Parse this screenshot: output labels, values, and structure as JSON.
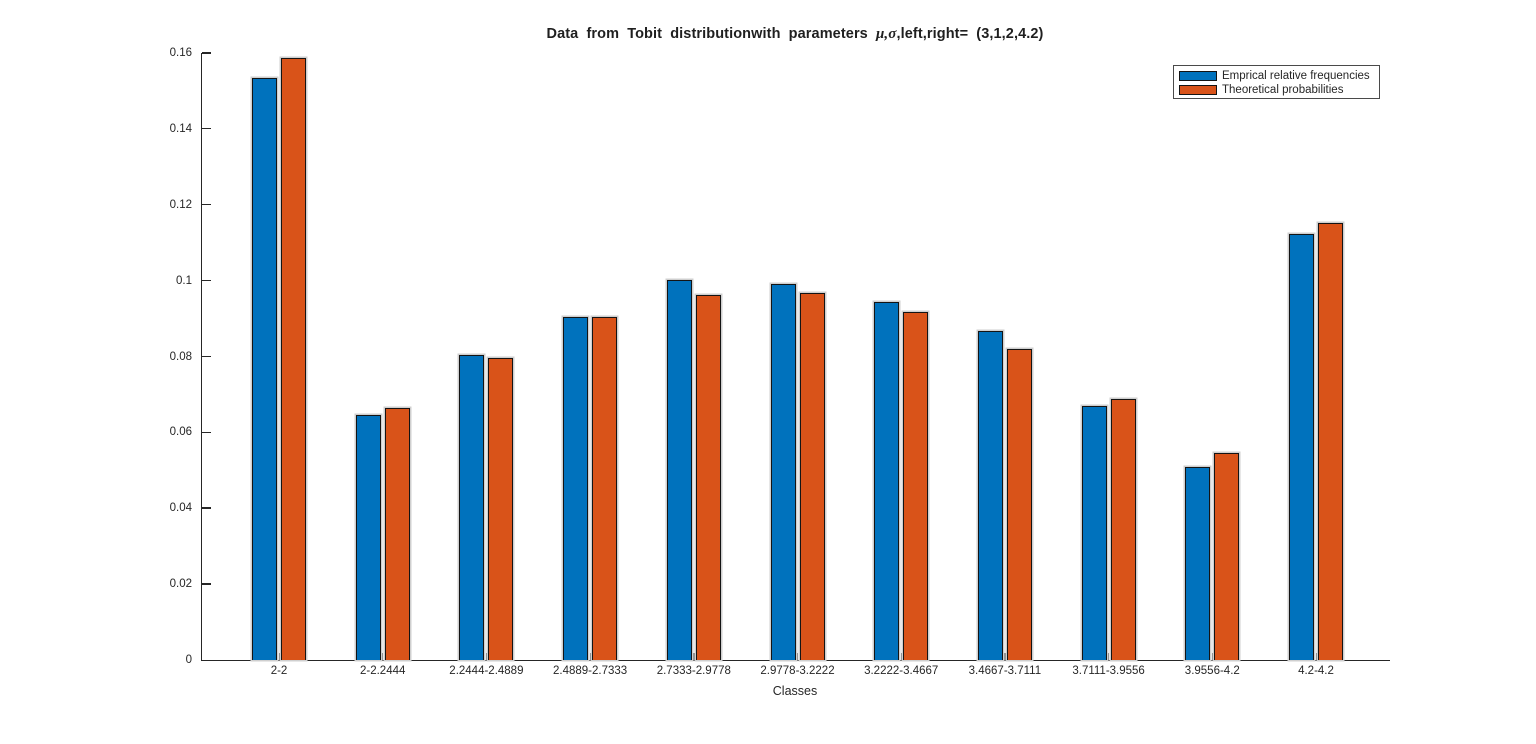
{
  "title_parts": {
    "part1": "Data from Tobit distributionwith parameters ",
    "greek": "μ,σ",
    "part2": ",left,right= (3,1,2,4.2)"
  },
  "chart_data": {
    "type": "bar",
    "title": "Data from Tobit distributionwith parameters μ,σ,left,right= (3,1,2,4.2)",
    "xlabel": "Classes",
    "ylabel": "",
    "ylim": [
      0,
      0.16
    ],
    "yticks": [
      0,
      0.02,
      0.04,
      0.06,
      0.08,
      0.1,
      0.12,
      0.14,
      0.16
    ],
    "ytick_labels": [
      "0",
      "0.02",
      "0.04",
      "0.06",
      "0.08",
      "0.1",
      "0.12",
      "0.14",
      "0.16"
    ],
    "grid": false,
    "legend_position": "top-right",
    "categories": [
      "2-2",
      "2-2.2444",
      "2.2444-2.4889",
      "2.4889-2.7333",
      "2.7333-2.9778",
      "2.9778-3.2222",
      "3.2222-3.4667",
      "3.4667-3.7111",
      "3.7111-3.9556",
      "3.9556-4.2",
      "4.2-4.2"
    ],
    "series": [
      {
        "name": "Emprical relative frequencies",
        "color": "#0072BD",
        "values": [
          0.1535,
          0.0645,
          0.0805,
          0.0905,
          0.1003,
          0.099,
          0.0945,
          0.0868,
          0.067,
          0.0508,
          0.1122
        ]
      },
      {
        "name": "Theoretical probabilities",
        "color": "#D95319",
        "values": [
          0.1587,
          0.0663,
          0.0796,
          0.0903,
          0.0962,
          0.0968,
          0.0917,
          0.0819,
          0.0688,
          0.0546,
          0.1151
        ]
      }
    ],
    "colors": {
      "bar_edge": "#141414",
      "axis": "#262626",
      "background": "#ffffff"
    }
  }
}
